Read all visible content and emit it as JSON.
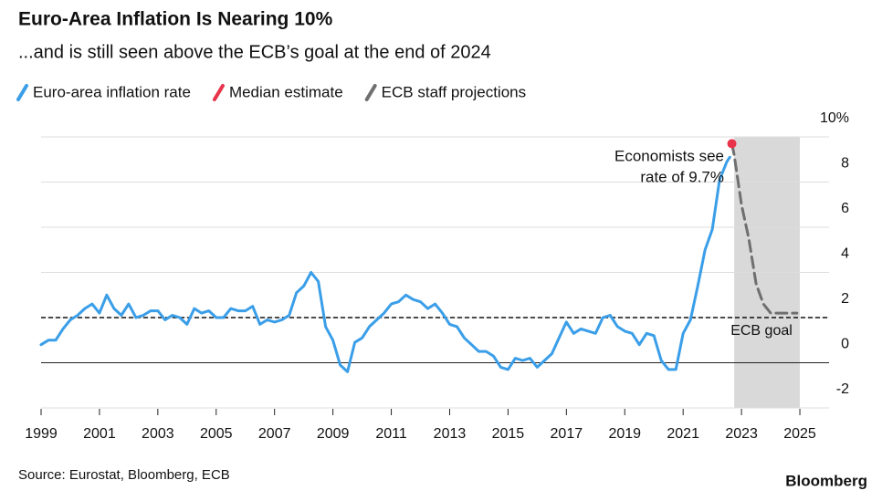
{
  "chart_data": {
    "type": "line",
    "title": "Euro-Area Inflation Is Nearing 10%",
    "subtitle": "...and is still seen above the ECB’s goal at the end of 2024",
    "source": "Source: Eurostat, Bloomberg, ECB",
    "brand": "Bloomberg",
    "annotation": [
      "Economists see",
      "rate of 9.7%"
    ],
    "reference_line": {
      "value": 2,
      "label": "ECB goal"
    },
    "shade": [
      2022.75,
      2025
    ],
    "xlim": [
      1999,
      2026
    ],
    "ylim": [
      -2,
      10
    ],
    "xticks": [
      1999,
      2001,
      2003,
      2005,
      2007,
      2009,
      2011,
      2013,
      2015,
      2017,
      2019,
      2021,
      2023,
      2025
    ],
    "yticks": [
      -2,
      0,
      2,
      4,
      6,
      8,
      {
        "value": 10,
        "label": "10%"
      }
    ],
    "grid": true,
    "series": [
      {
        "name": "Euro-area inflation rate",
        "color": "#3a9ee8",
        "style": "solid",
        "x": [
          1999,
          1999.25,
          1999.5,
          1999.75,
          2000,
          2000.25,
          2000.5,
          2000.75,
          2001,
          2001.25,
          2001.5,
          2001.75,
          2002,
          2002.25,
          2002.5,
          2002.75,
          2003,
          2003.25,
          2003.5,
          2003.75,
          2004,
          2004.25,
          2004.5,
          2004.75,
          2005,
          2005.25,
          2005.5,
          2005.75,
          2006,
          2006.25,
          2006.5,
          2006.75,
          2007,
          2007.25,
          2007.5,
          2007.75,
          2008,
          2008.25,
          2008.5,
          2008.75,
          2009,
          2009.25,
          2009.5,
          2009.75,
          2010,
          2010.25,
          2010.5,
          2010.75,
          2011,
          2011.25,
          2011.5,
          2011.75,
          2012,
          2012.25,
          2012.5,
          2012.75,
          2013,
          2013.25,
          2013.5,
          2013.75,
          2014,
          2014.25,
          2014.5,
          2014.75,
          2015,
          2015.25,
          2015.5,
          2015.75,
          2016,
          2016.25,
          2016.5,
          2016.75,
          2017,
          2017.25,
          2017.5,
          2017.75,
          2018,
          2018.25,
          2018.5,
          2018.75,
          2019,
          2019.25,
          2019.5,
          2019.75,
          2020,
          2020.25,
          2020.5,
          2020.75,
          2021,
          2021.25,
          2021.5,
          2021.75,
          2022,
          2022.25,
          2022.5,
          2022.6
        ],
        "values": [
          0.8,
          1.0,
          1.0,
          1.5,
          1.9,
          2.1,
          2.4,
          2.6,
          2.2,
          3.0,
          2.4,
          2.1,
          2.6,
          2.0,
          2.1,
          2.3,
          2.3,
          1.9,
          2.1,
          2.0,
          1.7,
          2.4,
          2.2,
          2.3,
          2.0,
          2.0,
          2.4,
          2.3,
          2.3,
          2.5,
          1.7,
          1.9,
          1.8,
          1.9,
          2.1,
          3.1,
          3.4,
          4.0,
          3.6,
          1.6,
          1.0,
          -0.1,
          -0.4,
          0.9,
          1.1,
          1.6,
          1.9,
          2.2,
          2.6,
          2.7,
          3.0,
          2.8,
          2.7,
          2.4,
          2.6,
          2.2,
          1.7,
          1.6,
          1.1,
          0.8,
          0.5,
          0.5,
          0.3,
          -0.2,
          -0.3,
          0.2,
          0.1,
          0.2,
          -0.2,
          0.1,
          0.4,
          1.1,
          1.8,
          1.3,
          1.5,
          1.4,
          1.3,
          2.0,
          2.1,
          1.6,
          1.4,
          1.3,
          0.8,
          1.3,
          1.2,
          0.1,
          -0.3,
          -0.3,
          1.3,
          1.9,
          3.4,
          5.0,
          5.9,
          8.1,
          8.9,
          9.1
        ]
      },
      {
        "name": "Median estimate",
        "color": "#e8334a",
        "style": "point",
        "x": [
          2022.67
        ],
        "values": [
          9.7
        ]
      },
      {
        "name": "ECB staff projections",
        "color": "#6f6f6f",
        "style": "dashed",
        "x": [
          2022.67,
          2022.75,
          2023,
          2023.25,
          2023.5,
          2023.75,
          2024,
          2024.25,
          2024.9
        ],
        "values": [
          9.7,
          9.2,
          7.0,
          5.5,
          3.5,
          2.6,
          2.2,
          2.2,
          2.2
        ]
      }
    ]
  }
}
